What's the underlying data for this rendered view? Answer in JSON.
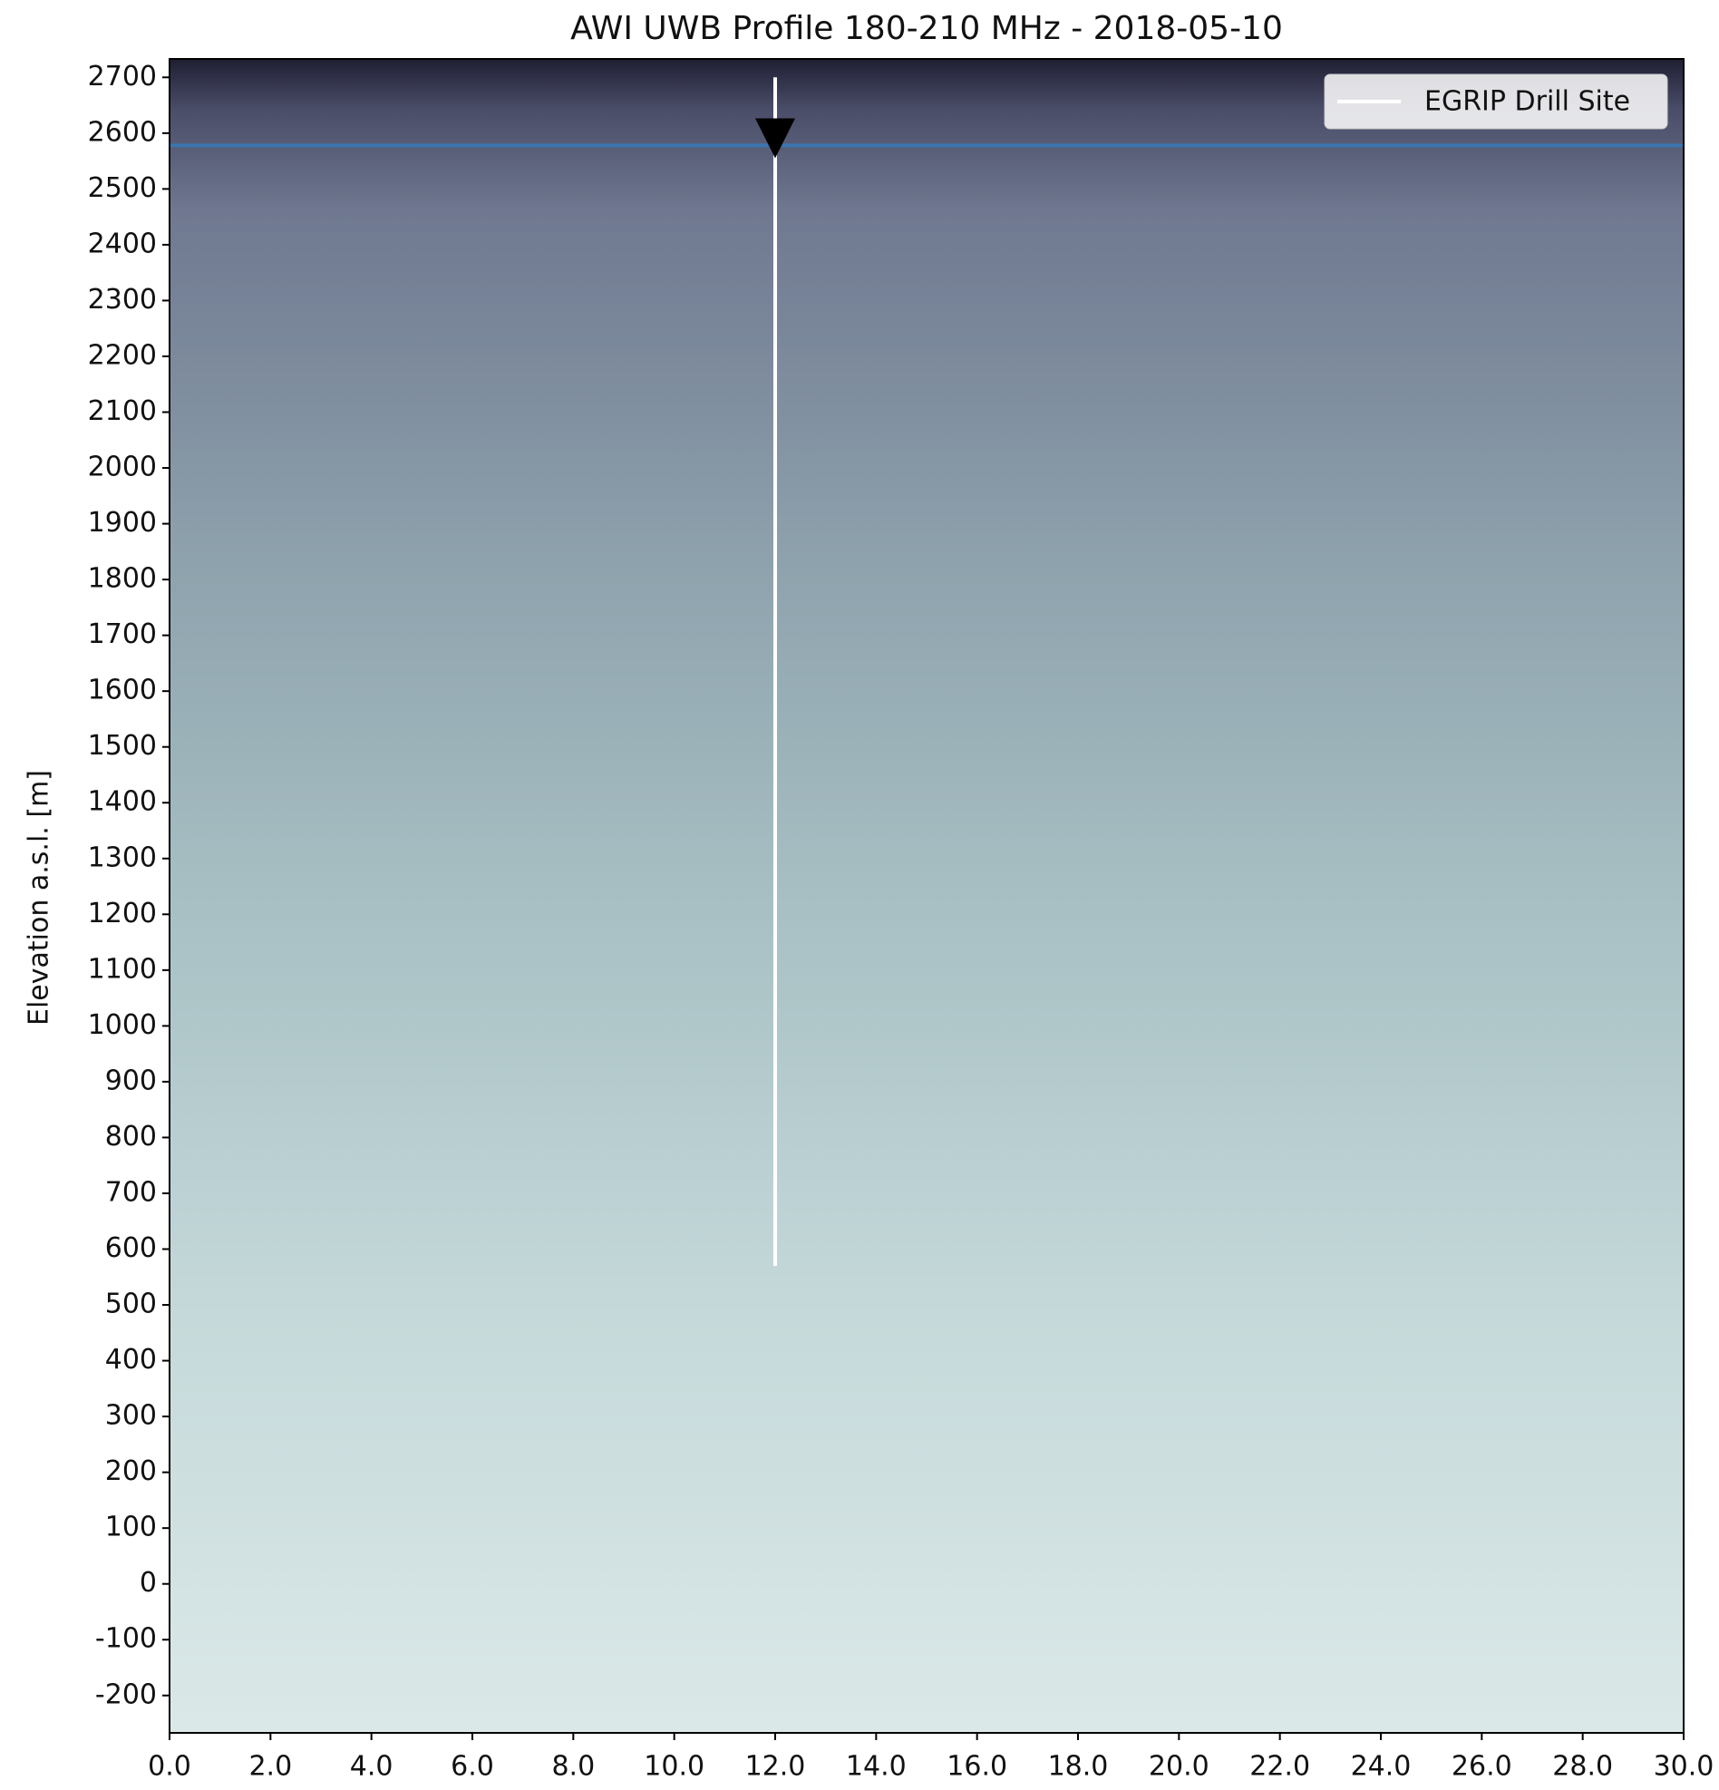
{
  "chart_data": {
    "type": "radargram",
    "title": "AWI UWB Profile 180-210 MHz - 2018-05-10",
    "ylabel": "Elevation a.s.l. [m]",
    "xlim": [
      0,
      30
    ],
    "ylim": [
      -267,
      2733
    ],
    "xticks": [
      {
        "value": 0,
        "label": "0.0"
      },
      {
        "value": 2,
        "label": "2.0"
      },
      {
        "value": 4,
        "label": "4.0"
      },
      {
        "value": 6,
        "label": "6.0"
      },
      {
        "value": 8,
        "label": "8.0"
      },
      {
        "value": 10,
        "label": "10.0"
      },
      {
        "value": 12,
        "label": "12.0"
      },
      {
        "value": 14,
        "label": "14.0"
      },
      {
        "value": 16,
        "label": "16.0"
      },
      {
        "value": 18,
        "label": "18.0"
      },
      {
        "value": 20,
        "label": "20.0"
      },
      {
        "value": 22,
        "label": "22.0"
      },
      {
        "value": 24,
        "label": "24.0"
      },
      {
        "value": 26,
        "label": "26.0"
      },
      {
        "value": 28,
        "label": "28.0"
      },
      {
        "value": 30,
        "label": "30.0"
      }
    ],
    "yticks": [
      -200,
      -100,
      0,
      100,
      200,
      300,
      400,
      500,
      600,
      700,
      800,
      900,
      1000,
      1100,
      1200,
      1300,
      1400,
      1500,
      1600,
      1700,
      1800,
      1900,
      2000,
      2100,
      2200,
      2300,
      2400,
      2500,
      2600,
      2700
    ],
    "series": [
      {
        "name": "EGRIP Drill Site",
        "color": "#ffffff",
        "x": [
          12,
          12
        ],
        "values": [
          2700,
          570
        ],
        "marker": {
          "x": 12,
          "y": 2555
        }
      }
    ],
    "hlines": [
      {
        "y": 2578,
        "color": "#3a75b0"
      }
    ],
    "legend": "upper right"
  }
}
